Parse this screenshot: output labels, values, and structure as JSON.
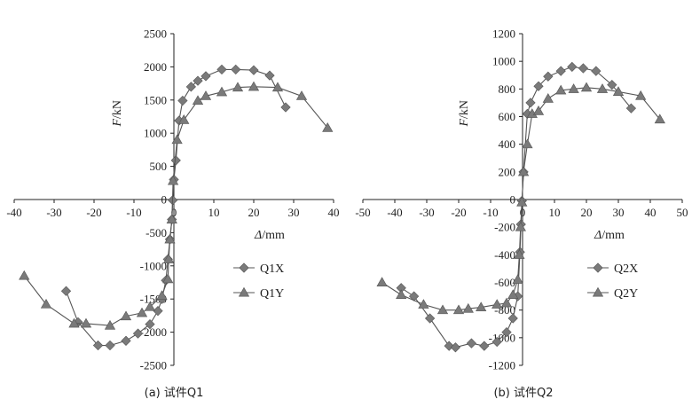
{
  "chart_data": [
    {
      "type": "line",
      "caption": "(a) 试件Q1",
      "xlabel_var": "Δ",
      "xlabel_unit": "/mm",
      "ylabel_var": "F",
      "ylabel_unit": "/kN",
      "xlim": [
        -40,
        40
      ],
      "ylim": [
        -2500,
        2500
      ],
      "xticks": [
        -40,
        -30,
        -20,
        -10,
        0,
        10,
        20,
        30,
        40
      ],
      "yticks": [
        2500,
        2000,
        1500,
        1000,
        500,
        0,
        -500,
        -1000,
        -1500,
        -2000,
        -2500
      ],
      "legend_position": "lower-right",
      "series": [
        {
          "name": "Q1X",
          "marker": "diamond",
          "points": [
            [
              -27,
              -1380
            ],
            [
              -24,
              -1850
            ],
            [
              -19,
              -2200
            ],
            [
              -16,
              -2200
            ],
            [
              -12,
              -2130
            ],
            [
              -9,
              -2020
            ],
            [
              -6,
              -1880
            ],
            [
              -4,
              -1680
            ],
            [
              -3,
              -1500
            ],
            [
              -2,
              -1220
            ],
            [
              -1.5,
              -900
            ],
            [
              -1,
              -600
            ],
            [
              -0.5,
              -300
            ],
            [
              -0.3,
              -10
            ],
            [
              0,
              300
            ],
            [
              0.5,
              590
            ],
            [
              1.3,
              1190
            ],
            [
              2.2,
              1490
            ],
            [
              4.3,
              1700
            ],
            [
              6,
              1790
            ],
            [
              8,
              1860
            ],
            [
              12,
              1960
            ],
            [
              15.5,
              1960
            ],
            [
              20,
              1950
            ],
            [
              24,
              1870
            ],
            [
              28,
              1390
            ]
          ]
        },
        {
          "name": "Q1Y",
          "marker": "triangle",
          "points": [
            [
              -37.5,
              -1150
            ],
            [
              -32,
              -1580
            ],
            [
              -25,
              -1870
            ],
            [
              -22,
              -1870
            ],
            [
              -16,
              -1900
            ],
            [
              -12,
              -1760
            ],
            [
              -8,
              -1710
            ],
            [
              -6,
              -1620
            ],
            [
              -3,
              -1450
            ],
            [
              -1.5,
              -1200
            ],
            [
              -1.3,
              -900
            ],
            [
              -1,
              -600
            ],
            [
              -0.5,
              -300
            ],
            [
              -0.2,
              280
            ],
            [
              0.8,
              900
            ],
            [
              2.5,
              1200
            ],
            [
              6,
              1490
            ],
            [
              8,
              1560
            ],
            [
              12,
              1620
            ],
            [
              16,
              1690
            ],
            [
              20,
              1700
            ],
            [
              26,
              1690
            ],
            [
              32,
              1560
            ],
            [
              38.5,
              1080
            ]
          ]
        }
      ]
    },
    {
      "type": "line",
      "caption": "(b) 试件Q2",
      "xlabel_var": "Δ",
      "xlabel_unit": "/mm",
      "ylabel_var": "F",
      "ylabel_unit": "/kN",
      "xlim": [
        -50,
        50
      ],
      "ylim": [
        -1200,
        1200
      ],
      "xticks": [
        -50,
        -40,
        -30,
        -20,
        -10,
        0,
        10,
        20,
        30,
        40,
        50
      ],
      "yticks": [
        1200,
        1000,
        800,
        600,
        400,
        200,
        0,
        -200,
        -400,
        -600,
        -800,
        -1000,
        -1200
      ],
      "legend_position": "lower-right",
      "series": [
        {
          "name": "Q2X",
          "marker": "diamond",
          "points": [
            [
              -38,
              -640
            ],
            [
              -34,
              -700
            ],
            [
              -29,
              -860
            ],
            [
              -23,
              -1060
            ],
            [
              -21,
              -1070
            ],
            [
              -16,
              -1040
            ],
            [
              -12,
              -1060
            ],
            [
              -8,
              -1030
            ],
            [
              -5,
              -960
            ],
            [
              -3,
              -860
            ],
            [
              -1.5,
              -700
            ],
            [
              -0.8,
              -380
            ],
            [
              -0.5,
              -180
            ],
            [
              -0.2,
              -10
            ],
            [
              0.3,
              200
            ],
            [
              1.5,
              620
            ],
            [
              2.5,
              700
            ],
            [
              5,
              820
            ],
            [
              8,
              890
            ],
            [
              12,
              930
            ],
            [
              15.5,
              960
            ],
            [
              19,
              950
            ],
            [
              23,
              930
            ],
            [
              28,
              830
            ],
            [
              34,
              660
            ]
          ]
        },
        {
          "name": "Q2Y",
          "marker": "triangle",
          "points": [
            [
              -44,
              -600
            ],
            [
              -38,
              -690
            ],
            [
              -31,
              -760
            ],
            [
              -25,
              -800
            ],
            [
              -20,
              -800
            ],
            [
              -17,
              -790
            ],
            [
              -13,
              -780
            ],
            [
              -8,
              -760
            ],
            [
              -5,
              -750
            ],
            [
              -3,
              -690
            ],
            [
              -1.5,
              -580
            ],
            [
              -1,
              -400
            ],
            [
              -0.6,
              -200
            ],
            [
              -0.2,
              -20
            ],
            [
              0.3,
              200
            ],
            [
              1.5,
              400
            ],
            [
              3,
              620
            ],
            [
              5,
              640
            ],
            [
              8,
              730
            ],
            [
              12,
              790
            ],
            [
              16,
              800
            ],
            [
              20,
              810
            ],
            [
              25,
              800
            ],
            [
              30,
              780
            ],
            [
              37,
              750
            ],
            [
              43,
              580
            ]
          ]
        }
      ]
    }
  ]
}
